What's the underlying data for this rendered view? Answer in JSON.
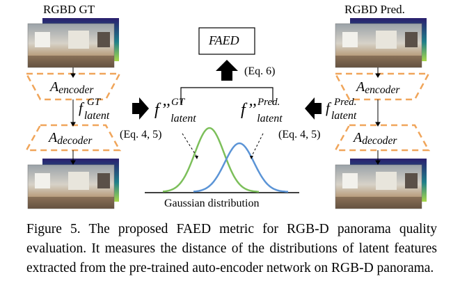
{
  "left_panel": {
    "title": "RGBD GT",
    "encoder_label": {
      "base": "A",
      "sub": "encoder"
    },
    "latent_label": {
      "base": "f",
      "sup": "GT",
      "sub": "latent"
    },
    "decoder_label": {
      "base": "A",
      "sub": "decoder"
    }
  },
  "right_panel": {
    "title": "RGBD Pred.",
    "encoder_label": {
      "base": "A",
      "sub": "encoder"
    },
    "latent_label": {
      "base": "f",
      "sup": "Pred.",
      "sub": "latent"
    },
    "decoder_label": {
      "base": "A",
      "sub": "decoder"
    }
  },
  "center": {
    "metric_box": "FAED",
    "metric_eq": "(Eq. 6)",
    "feature_gt": {
      "base": "f’’",
      "sup": "GT",
      "sub": "latent"
    },
    "feature_pred": {
      "base": "f’’",
      "sup": "Pred.",
      "sub": "latent"
    },
    "eq_left": "(Eq. 4, 5)",
    "eq_right": "(Eq. 4, 5)",
    "distribution_label": "Gaussian distribution"
  },
  "colors": {
    "gt_curve": "#7cbf5a",
    "pred_curve": "#5b94d6",
    "autoencoder_dash": "#f0a55a",
    "depth_map_top": "#2a1f6e",
    "depth_map_mid": "#1f7f8a",
    "depth_map_bottom": "#a9d94a"
  },
  "caption": {
    "text": "Figure 5. The proposed FAED metric for RGB-D panorama quality evaluation. It measures the distance of the distributions of latent features extracted from the pre-trained auto-encoder network on RGB-D panorama."
  }
}
